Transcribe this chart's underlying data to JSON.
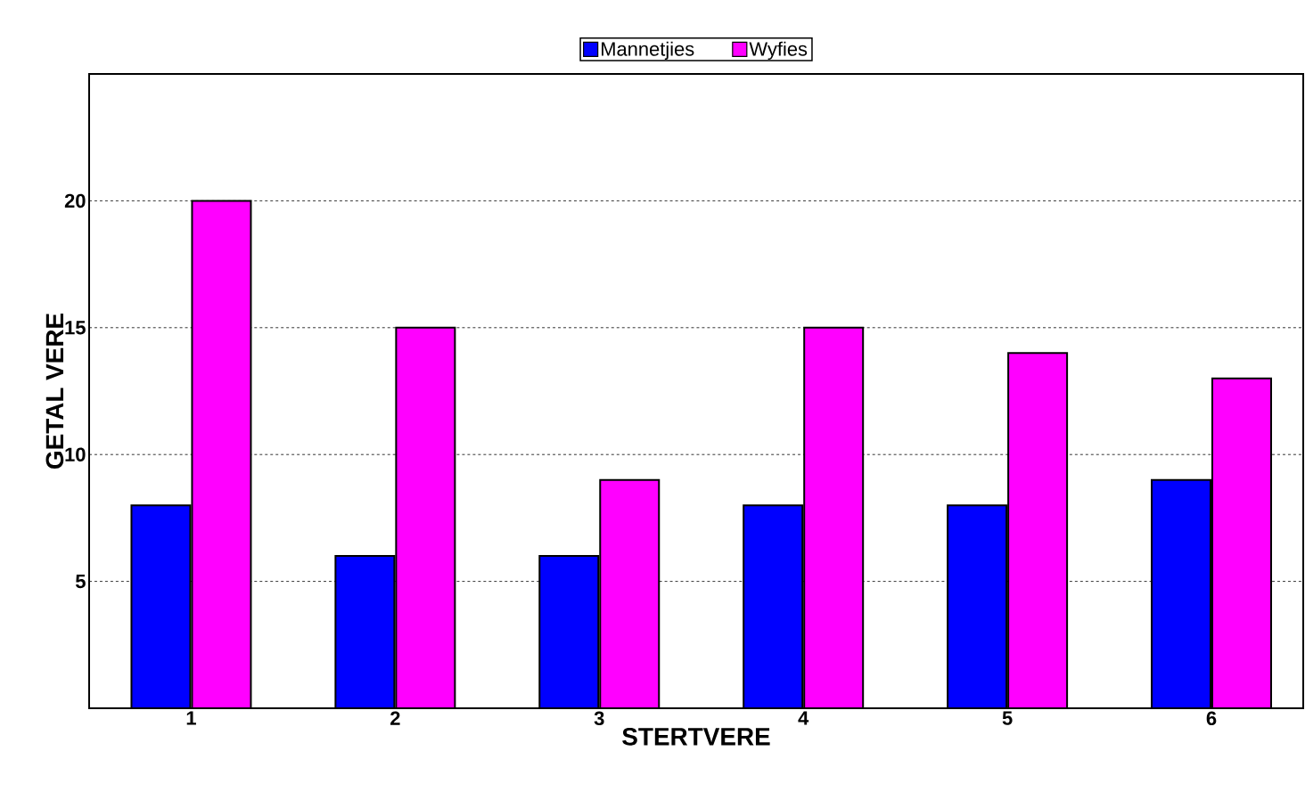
{
  "chart_data": {
    "type": "bar",
    "xlabel": "STERTVERE",
    "ylabel": "GETAL VERE",
    "categories": [
      "1",
      "2",
      "3",
      "4",
      "5",
      "6"
    ],
    "series": [
      {
        "name": "Mannetjies",
        "color": "#0000ff",
        "values": [
          8,
          6,
          6,
          8,
          8,
          9
        ]
      },
      {
        "name": "Wyfies",
        "color": "#ff00ff",
        "values": [
          20,
          15,
          9,
          15,
          14,
          13
        ]
      }
    ],
    "ylim": [
      0,
      25
    ],
    "yticks": [
      5,
      10,
      15,
      20
    ],
    "grid": "y",
    "legend": "top"
  }
}
